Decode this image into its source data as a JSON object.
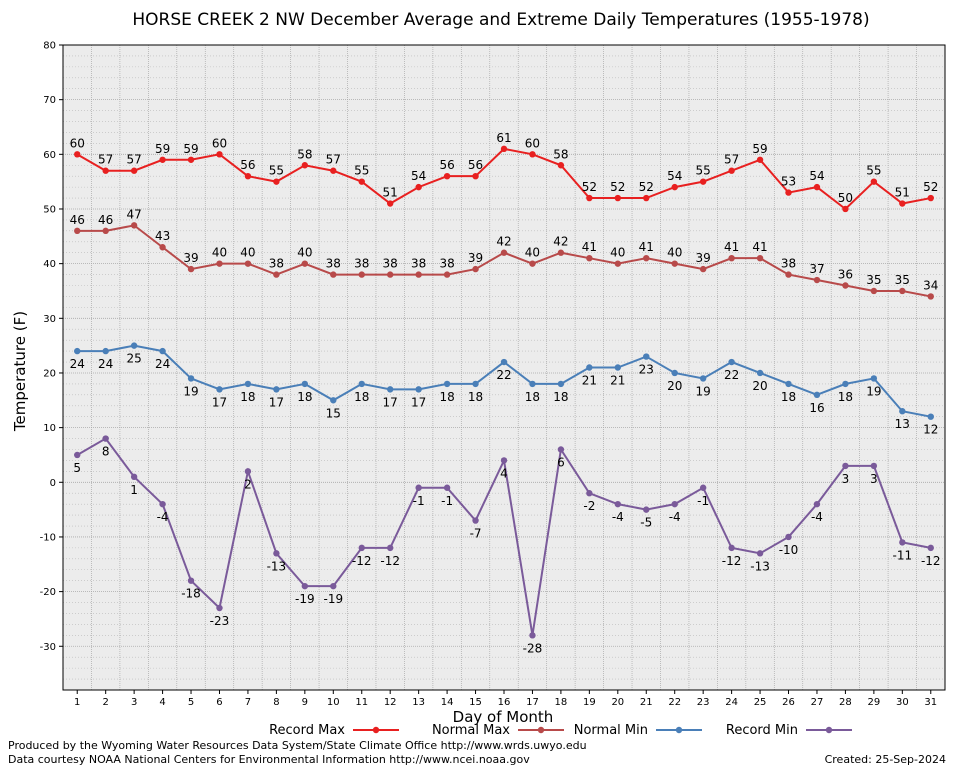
{
  "chart_data": {
    "type": "line",
    "title": "HORSE CREEK 2 NW December Average and Extreme Daily Temperatures (1955-1978)",
    "xlabel": "Day of Month",
    "ylabel": "Temperature (F)",
    "ylim": [
      -38,
      80
    ],
    "yticks": [
      -30,
      -20,
      -10,
      0,
      10,
      20,
      30,
      40,
      50,
      60,
      70,
      80
    ],
    "x": [
      1,
      2,
      3,
      4,
      5,
      6,
      7,
      8,
      9,
      10,
      11,
      12,
      13,
      14,
      15,
      16,
      17,
      18,
      19,
      20,
      21,
      22,
      23,
      24,
      25,
      26,
      27,
      28,
      29,
      30,
      31
    ],
    "grid": true,
    "legend_position": "bottom",
    "series": [
      {
        "name": "Record Max",
        "color": "#e82020",
        "label_pos": "above",
        "values": [
          60,
          57,
          57,
          59,
          59,
          60,
          56,
          55,
          58,
          57,
          55,
          51,
          54,
          56,
          56,
          61,
          60,
          58,
          52,
          52,
          52,
          54,
          55,
          57,
          59,
          53,
          54,
          50,
          55,
          51,
          52
        ]
      },
      {
        "name": "Normal Max",
        "color": "#b84a4a",
        "label_pos": "above",
        "values": [
          46,
          46,
          47,
          43,
          39,
          40,
          40,
          38,
          40,
          38,
          38,
          38,
          38,
          38,
          39,
          42,
          40,
          42,
          41,
          40,
          41,
          40,
          39,
          41,
          41,
          38,
          37,
          36,
          35,
          35,
          34
        ]
      },
      {
        "name": "Normal Min",
        "color": "#4a7fb8",
        "label_pos": "below",
        "values": [
          24,
          24,
          25,
          24,
          19,
          17,
          18,
          17,
          18,
          15,
          18,
          17,
          17,
          18,
          18,
          22,
          18,
          18,
          21,
          21,
          23,
          20,
          19,
          22,
          20,
          18,
          16,
          18,
          19,
          13,
          12
        ]
      },
      {
        "name": "Record Min",
        "color": "#7a5a9a",
        "label_pos": "below",
        "values": [
          5,
          8,
          1,
          -4,
          -18,
          -23,
          2,
          -13,
          -19,
          -19,
          -12,
          -12,
          -1,
          -1,
          -7,
          4,
          -28,
          6,
          -2,
          -4,
          -5,
          -4,
          -1,
          -12,
          -13,
          -10,
          -4,
          3,
          3,
          -11,
          -12
        ]
      }
    ]
  },
  "footer": {
    "line1": "Produced by the Wyoming Water Resources Data System/State Climate Office http://www.wrds.uwyo.edu",
    "line2": "Data courtesy NOAA National Centers for Environmental Information http://www.ncei.noaa.gov",
    "created": "Created:  25-Sep-2024"
  }
}
